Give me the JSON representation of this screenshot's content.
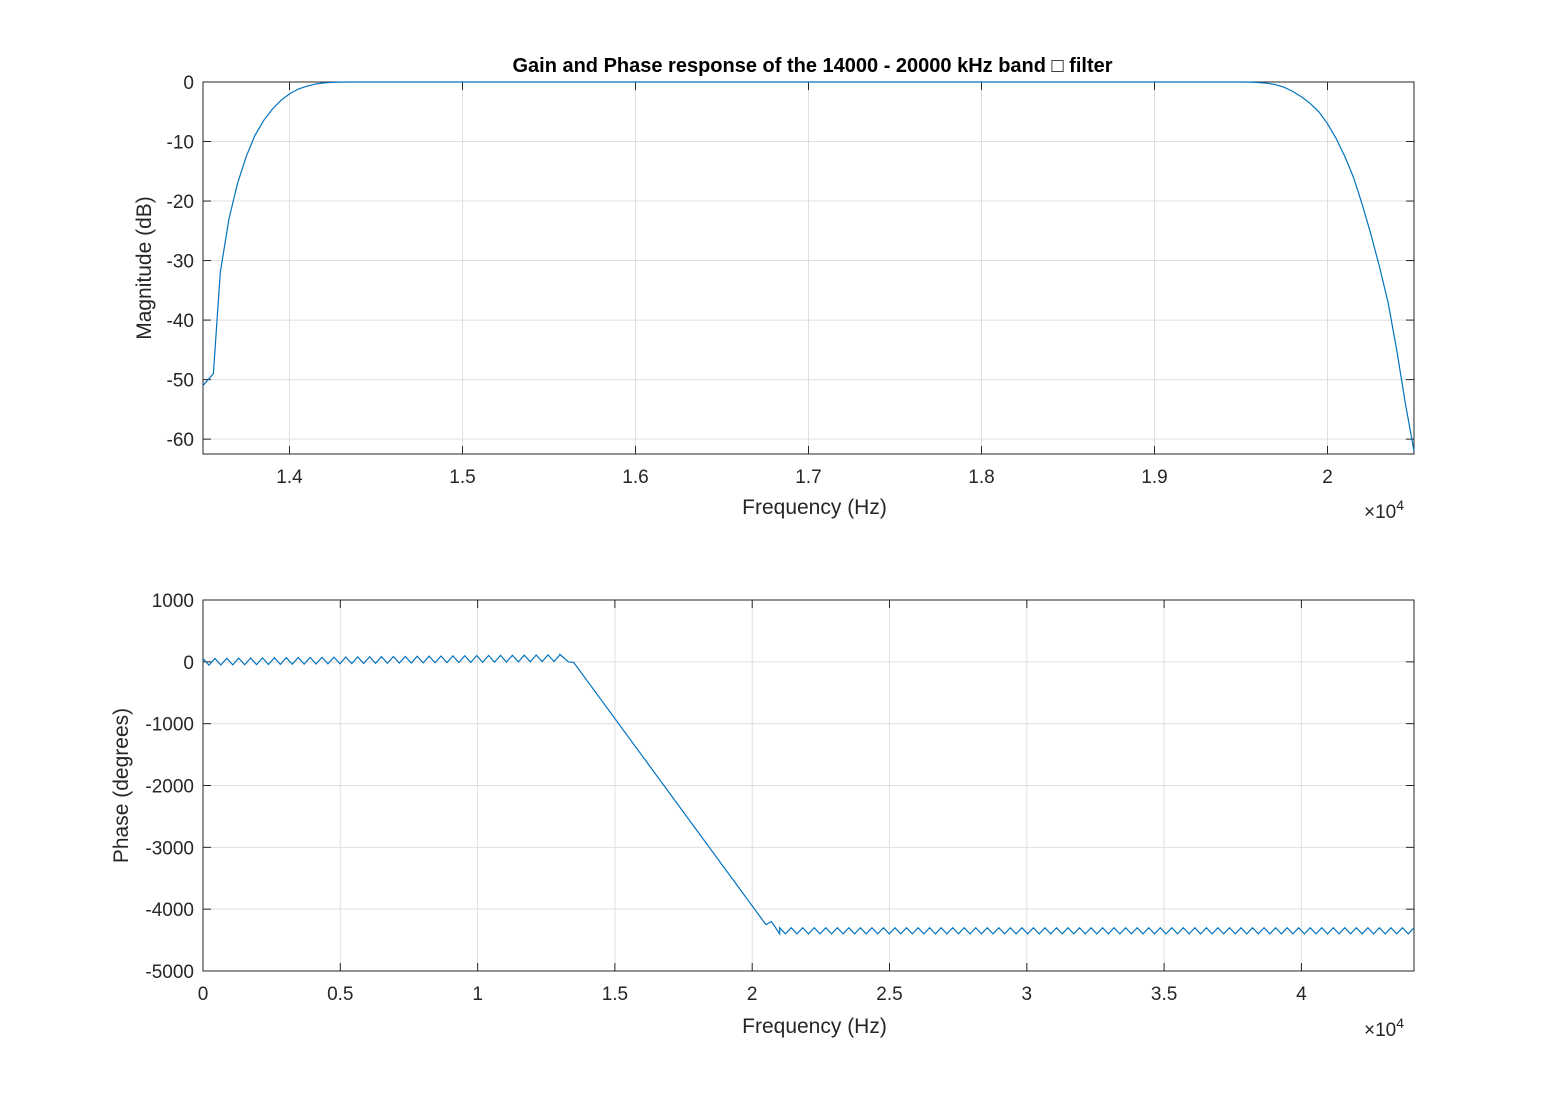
{
  "chart_data": [
    {
      "type": "line",
      "title": "Gain and Phase response of the 14000 - 20000 kHz band □ filter",
      "xlabel": "Frequency (Hz)",
      "ylabel": "Magnitude (dB)",
      "x_multiplier": "×10",
      "x_multiplier_exp": "4",
      "xlim": [
        13500,
        20500
      ],
      "ylim": [
        -62.5,
        0
      ],
      "xticks": [
        14000,
        15000,
        16000,
        17000,
        18000,
        19000,
        20000
      ],
      "xticklabels": [
        "1.4",
        "1.5",
        "1.6",
        "1.7",
        "1.8",
        "1.9",
        "2"
      ],
      "yticks": [
        0,
        -10,
        -20,
        -30,
        -40,
        -50,
        -60
      ],
      "yticklabels": [
        "0",
        "-10",
        "-20",
        "-30",
        "-40",
        "-50",
        "-60"
      ],
      "grid": true,
      "series": [
        {
          "color": "#0072bd",
          "x": [
            13500,
            13560,
            13600,
            13650,
            13700,
            13750,
            13800,
            13850,
            13900,
            13950,
            14000,
            14050,
            14100,
            14150,
            14200,
            14250,
            14300,
            14350,
            14400,
            14450,
            14500,
            19500,
            19550,
            19600,
            19650,
            19700,
            19750,
            19800,
            19850,
            19900,
            19950,
            20000,
            20050,
            20100,
            20150,
            20200,
            20250,
            20300,
            20350,
            20400,
            20450,
            20500
          ],
          "y": [
            -51,
            -49,
            -32,
            -23,
            -17,
            -12.5,
            -9,
            -6.5,
            -4.6,
            -3.1,
            -2,
            -1.2,
            -0.7,
            -0.35,
            -0.15,
            -0.05,
            -0.02,
            0,
            0,
            0,
            0,
            0,
            -0.02,
            -0.08,
            -0.2,
            -0.45,
            -0.9,
            -1.6,
            -2.5,
            -3.6,
            -5,
            -7,
            -9.5,
            -12.5,
            -16,
            -20.5,
            -25.5,
            -31,
            -37,
            -45,
            -54,
            -62
          ]
        }
      ]
    },
    {
      "type": "line",
      "title": "",
      "xlabel": "Frequency (Hz)",
      "ylabel": "Phase (degrees)",
      "x_multiplier": "×10",
      "x_multiplier_exp": "4",
      "xlim": [
        0,
        44100
      ],
      "ylim": [
        -5000,
        1000
      ],
      "xticks": [
        0,
        5000,
        10000,
        15000,
        20000,
        25000,
        30000,
        35000,
        40000
      ],
      "xticklabels": [
        "0",
        "0.5",
        "1",
        "1.5",
        "2",
        "2.5",
        "3",
        "3.5",
        "4"
      ],
      "yticks": [
        1000,
        0,
        -1000,
        -2000,
        -3000,
        -4000,
        -5000
      ],
      "yticklabels": [
        "1000",
        "0",
        "-1000",
        "-2000",
        "-3000",
        "-4000",
        "-5000"
      ],
      "grid": true,
      "series": [
        {
          "color": "#0072bd",
          "sawtooth_regions": [
            {
              "x_start": 0,
              "x_end": 13000,
              "center_start": 0,
              "center_end": 60,
              "amplitude": 60,
              "period": 430
            },
            {
              "x_start": 21000,
              "x_end": 44100,
              "center_start": -4350,
              "center_end": -4350,
              "amplitude": 55,
              "period": 420
            }
          ],
          "x": [
            13000,
            13300,
            13500,
            20500,
            20700,
            21000
          ],
          "y": [
            120,
            0,
            -10,
            -4250,
            -4200,
            -4400
          ]
        }
      ]
    }
  ]
}
